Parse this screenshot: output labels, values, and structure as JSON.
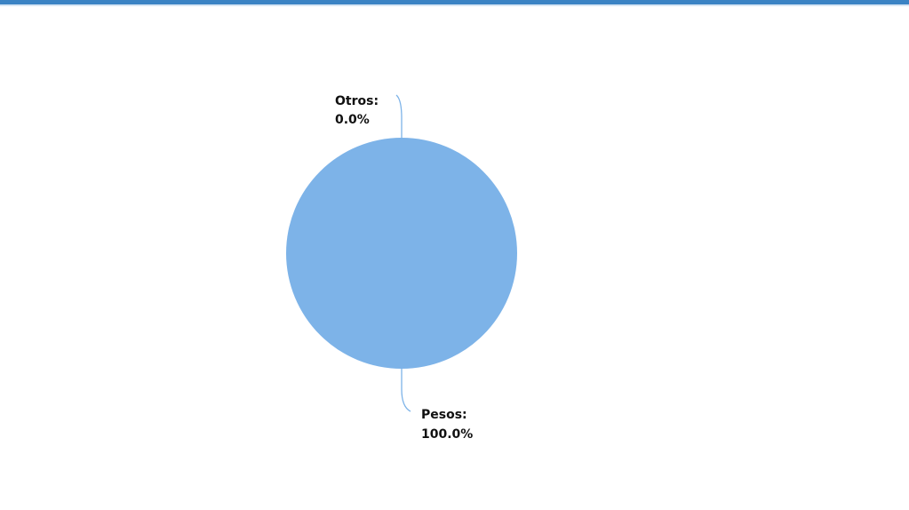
{
  "chart_data": {
    "type": "pie",
    "title": "",
    "categories": [
      "Otros",
      "Pesos"
    ],
    "values": [
      0.0,
      100.0
    ],
    "labels": [
      {
        "name": "Otros:",
        "value": "0.0%"
      },
      {
        "name": "Pesos:",
        "value": "100.0%"
      }
    ],
    "colors": [
      "#7db3e8",
      "#7db3e8"
    ],
    "leader_line_color": "#7db3e8",
    "legend": "none"
  },
  "colors": {
    "header_rule": "#3b83c4",
    "background": "#ffffff"
  }
}
